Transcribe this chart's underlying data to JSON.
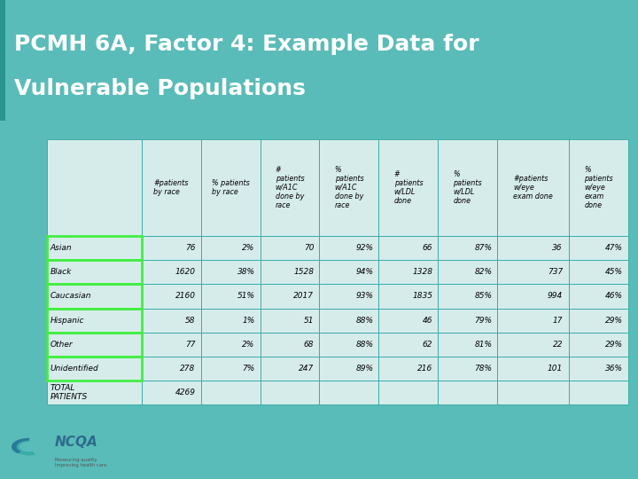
{
  "title_line1": "PCMH 6A, Factor 4: Example Data for",
  "title_line2": "Vulnerable Populations",
  "title_bg": "#3aada8",
  "title_color": "#ffffff",
  "title_fontsize": 18,
  "bg_color": "#5abcb8",
  "table_bg_light": "#d6eceb",
  "table_border_color": "#3aada8",
  "highlight_border": "#44ee44",
  "col_headers": [
    "#patients\nby race",
    "% patients\nby race",
    "#\npatients\nw/A1C\ndone by\nrace",
    "%\npatients\nw/A1C\ndone by\nrace",
    "#\npatients\nw/LDL\ndone",
    "%\npatients\nw/LDL\ndone",
    "#patients\nw/eye\nexam done",
    "%\npatients\nw/eye\nexam\ndone"
  ],
  "row_labels": [
    "Asian",
    "Black",
    "Caucasian",
    "Hispanic",
    "Other",
    "Unidentified",
    "TOTAL\nPATIENTS"
  ],
  "data": [
    [
      "76",
      "2%",
      "70",
      "92%",
      "66",
      "87%",
      "36",
      "47%"
    ],
    [
      "1620",
      "38%",
      "1528",
      "94%",
      "1328",
      "82%",
      "737",
      "45%"
    ],
    [
      "2160",
      "51%",
      "2017",
      "93%",
      "1835",
      "85%",
      "994",
      "46%"
    ],
    [
      "58",
      "1%",
      "51",
      "88%",
      "46",
      "79%",
      "17",
      "29%"
    ],
    [
      "77",
      "2%",
      "68",
      "88%",
      "62",
      "81%",
      "22",
      "29%"
    ],
    [
      "278",
      "7%",
      "247",
      "89%",
      "216",
      "78%",
      "101",
      "36%"
    ],
    [
      "4269",
      "",
      "",
      "",
      "",
      "",
      "",
      ""
    ]
  ],
  "ncqa_color": "#2d6a8c"
}
